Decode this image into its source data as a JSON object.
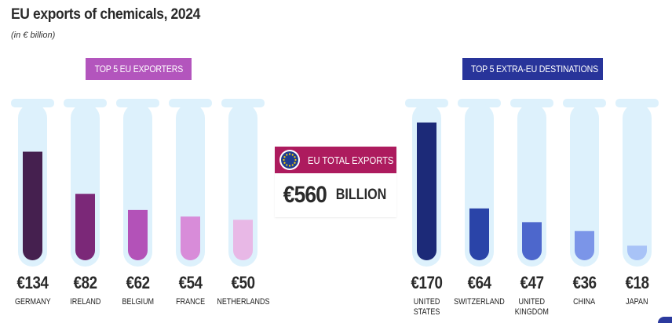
{
  "title": "EU exports of chemicals, 2024",
  "subtitle": "(in € billion)",
  "left_group": {
    "label": "TOP 5 EU EXPORTERS",
    "color": "#b355bd"
  },
  "right_group": {
    "label": "TOP 5 EXTRA-EU DESTINATIONS",
    "color": "#28349a"
  },
  "total": {
    "label": "EU TOTAL EXPORTS",
    "amount": "€560",
    "unit": "BILLION",
    "header_color": "#ad1b5e"
  },
  "colors": {
    "tube": "#ddf1fc"
  },
  "chart_data": [
    {
      "type": "bar",
      "title": "TOP 5 EU EXPORTERS",
      "unit": "€ billion",
      "ylim": [
        0,
        180
      ],
      "categories": [
        "GERMANY",
        "IRELAND",
        "BELGIUM",
        "FRANCE",
        "NETHERLANDS"
      ],
      "values": [
        134,
        82,
        62,
        54,
        50
      ],
      "value_labels": [
        "€134",
        "€82",
        "€62",
        "€54",
        "€50"
      ],
      "colors": [
        "#45204f",
        "#7b2878",
        "#b352b8",
        "#d88cd9",
        "#e8b8e6"
      ]
    },
    {
      "type": "bar",
      "title": "TOP 5 EXTRA-EU DESTINATIONS",
      "unit": "€ billion",
      "ylim": [
        0,
        180
      ],
      "categories": [
        "UNITED STATES",
        "SWITZERLAND",
        "UNITED KINGDOM",
        "CHINA",
        "JAPAN"
      ],
      "values": [
        170,
        64,
        47,
        36,
        18
      ],
      "value_labels": [
        "€170",
        "€64",
        "€47",
        "€36",
        "€18"
      ],
      "colors": [
        "#1c2a78",
        "#2a44a8",
        "#4d67cc",
        "#7b95e8",
        "#a8c3f7"
      ]
    }
  ]
}
